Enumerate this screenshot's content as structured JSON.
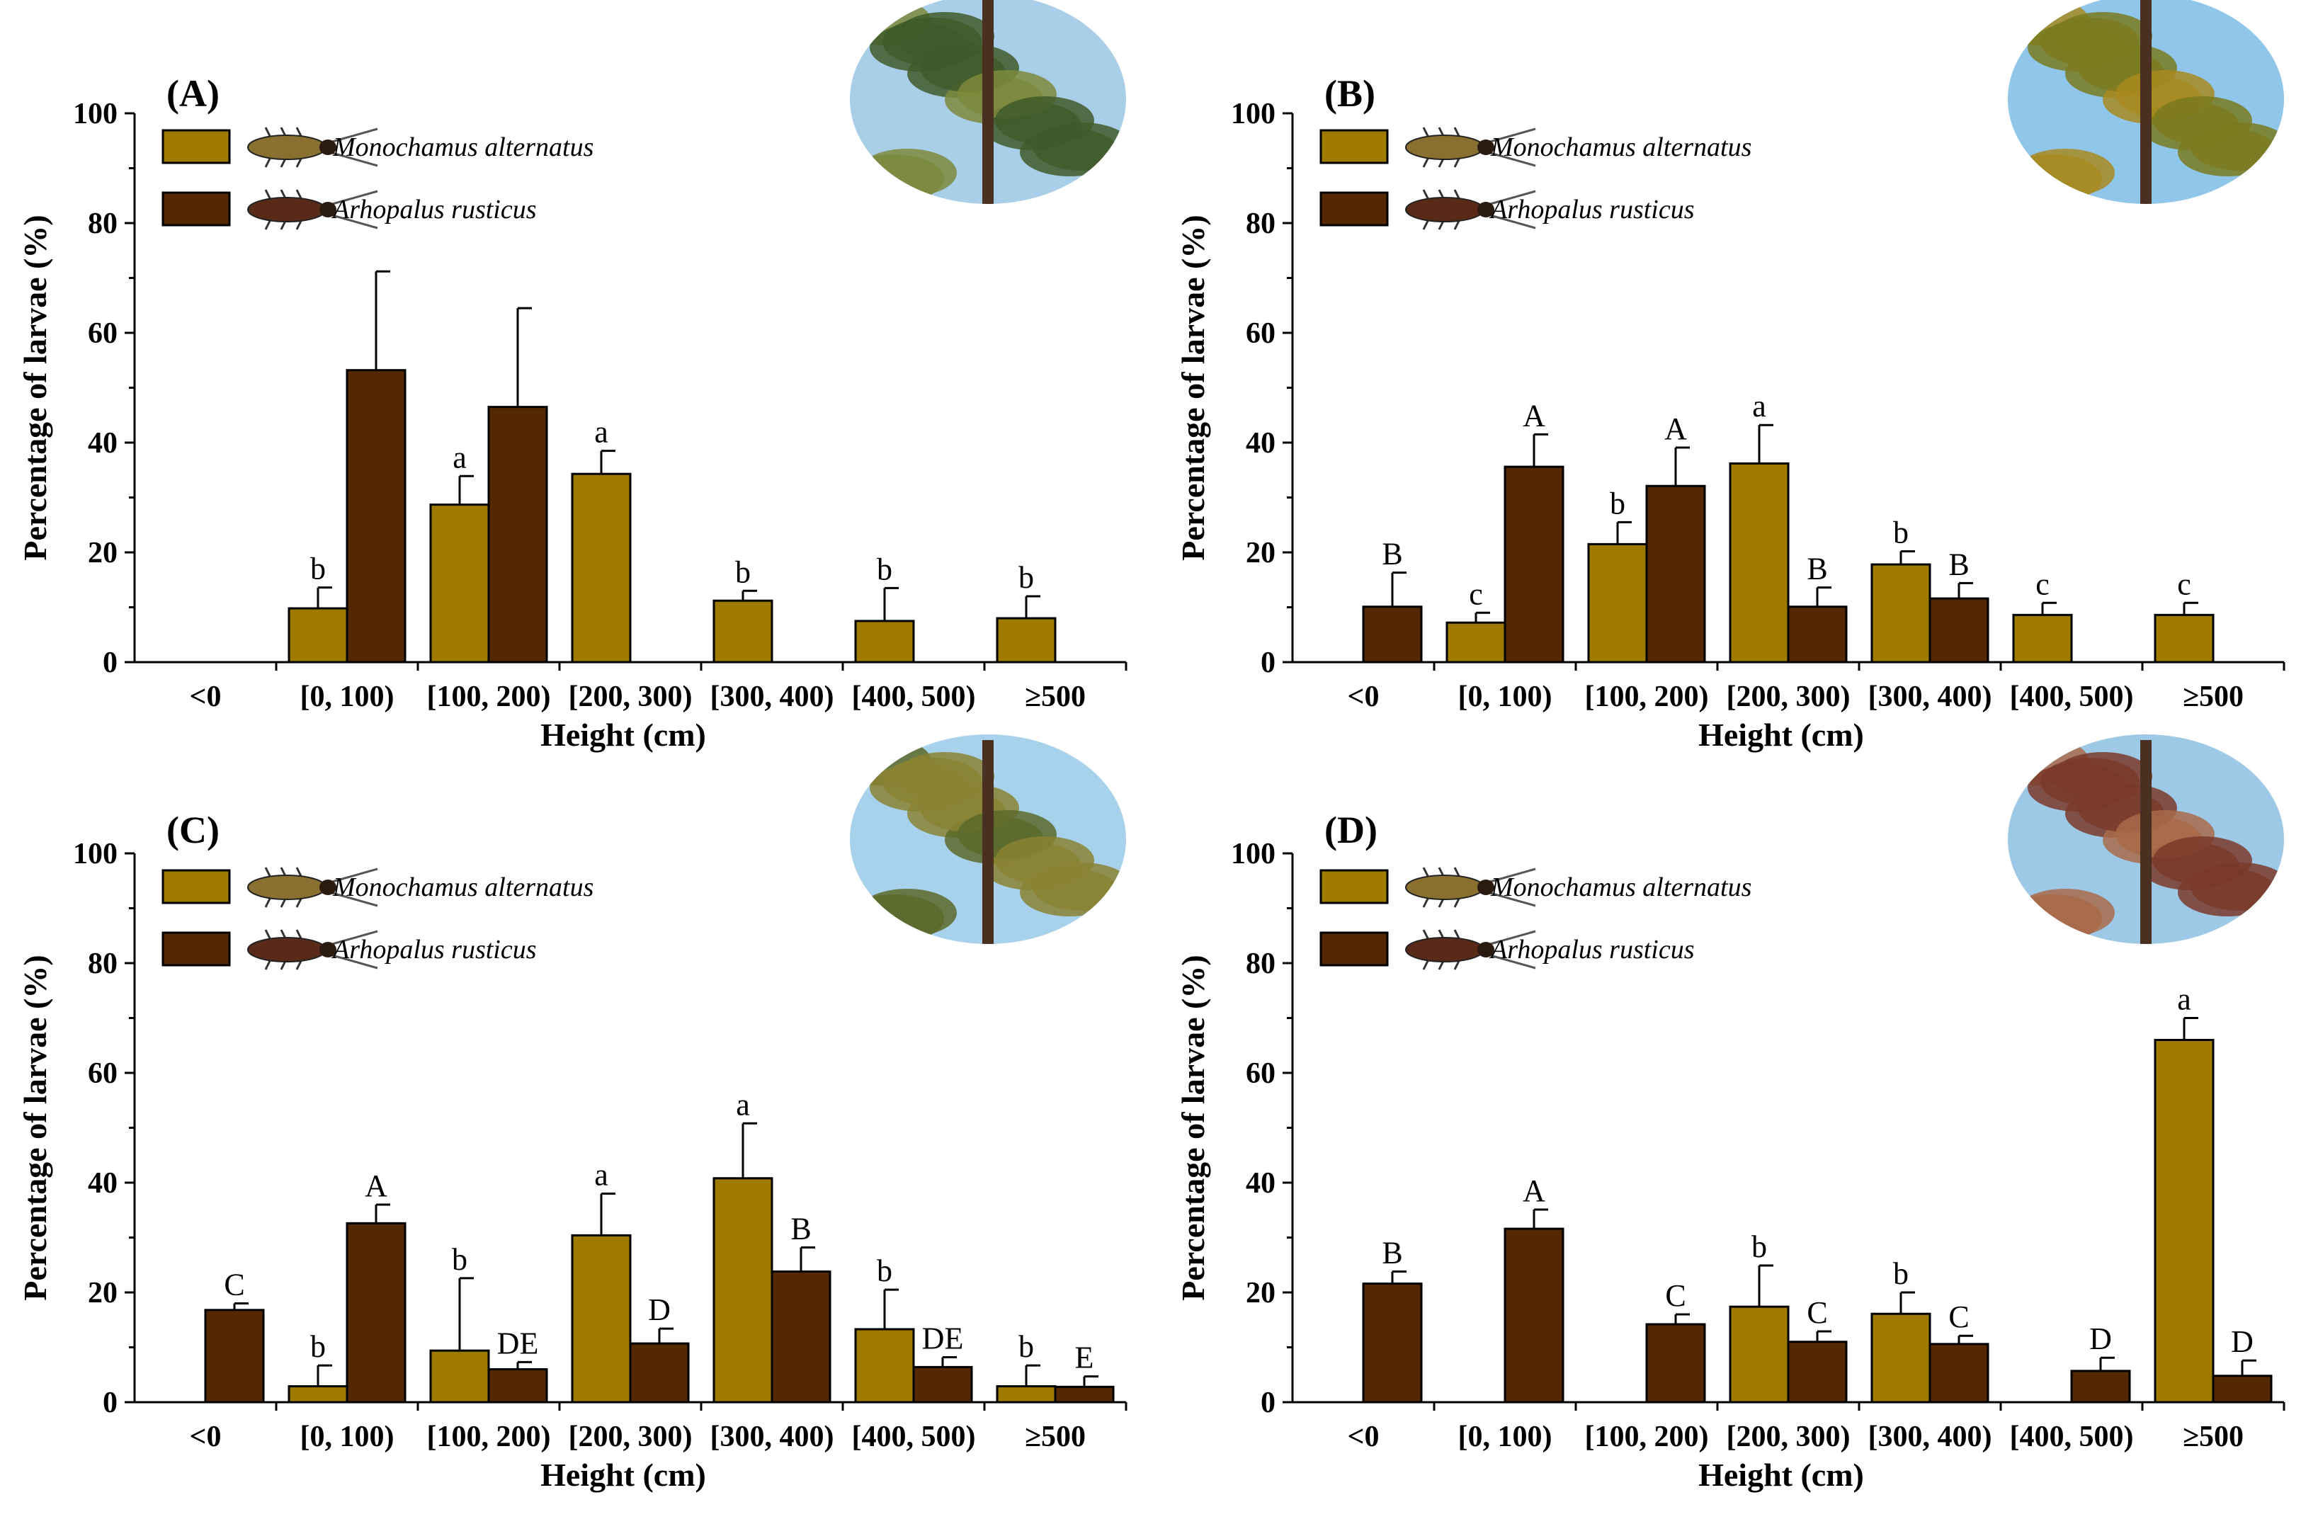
{
  "chart_data": {
    "type": "bar",
    "series_names": [
      "Monochamus alternatus",
      "Arhopalus rusticus"
    ],
    "colors": {
      "monochamus": "#9E7B00",
      "arhopalus": "#542800",
      "axis": "#000000"
    },
    "categories": [
      "<0",
      "[0, 100)",
      "[100, 200)",
      "[200, 300)",
      "[300, 400)",
      "[400, 500)",
      "≥500"
    ],
    "xlabel": "Height (cm)",
    "ylabel": "Percentage of larvae (%)",
    "ylim": [
      0,
      100
    ],
    "yticks": [
      "0",
      "20",
      "40",
      "60",
      "80",
      "100"
    ],
    "panels": [
      {
        "label": "(A)",
        "series": [
          {
            "name": "Monochamus alternatus",
            "values": [
              null,
              9.8,
              28.7,
              34.3,
              11.2,
              7.5,
              8.0
            ],
            "errors": [
              null,
              3.8,
              5.2,
              4.2,
              1.8,
              6.0,
              4.0
            ],
            "letters": [
              "",
              "b",
              "a",
              "a",
              "b",
              "b",
              "b"
            ]
          },
          {
            "name": "Arhopalus rusticus",
            "values": [
              null,
              53.2,
              46.5,
              null,
              null,
              null,
              null
            ],
            "errors": [
              null,
              18.0,
              18.0,
              null,
              null,
              null,
              null
            ],
            "letters": [
              "",
              "",
              "",
              "",
              "",
              "",
              ""
            ]
          }
        ]
      },
      {
        "label": "(B)",
        "series": [
          {
            "name": "Monochamus alternatus",
            "values": [
              null,
              7.2,
              21.5,
              36.2,
              17.8,
              8.6,
              8.6
            ],
            "errors": [
              null,
              1.8,
              4.0,
              7.0,
              2.4,
              2.2,
              2.2
            ],
            "letters": [
              "",
              "c",
              "b",
              "a",
              "b",
              "c",
              "c"
            ]
          },
          {
            "name": "Arhopalus rusticus",
            "values": [
              10.1,
              35.6,
              32.1,
              10.1,
              11.6,
              null,
              null
            ],
            "errors": [
              6.2,
              5.9,
              7.0,
              3.5,
              2.8,
              null,
              null
            ],
            "letters": [
              "B",
              "A",
              "A",
              "B",
              "B",
              "",
              ""
            ]
          }
        ]
      },
      {
        "label": "(C)",
        "series": [
          {
            "name": "Monochamus alternatus",
            "values": [
              null,
              2.9,
              9.4,
              30.4,
              40.8,
              13.3,
              2.9
            ],
            "errors": [
              null,
              3.8,
              13.2,
              7.6,
              10.0,
              7.2,
              3.8
            ],
            "letters": [
              "",
              "b",
              "b",
              "a",
              "a",
              "b",
              "b"
            ]
          },
          {
            "name": "Arhopalus rusticus",
            "values": [
              16.8,
              32.6,
              6.0,
              10.7,
              23.8,
              6.4,
              2.8
            ],
            "errors": [
              1.2,
              3.4,
              1.3,
              2.7,
              4.4,
              1.8,
              1.9
            ],
            "letters": [
              "C",
              "A",
              "DE",
              "D",
              "B",
              "DE",
              "E"
            ]
          }
        ]
      },
      {
        "label": "(D)",
        "series": [
          {
            "name": "Monochamus alternatus",
            "values": [
              null,
              null,
              null,
              17.4,
              16.1,
              null,
              66.0
            ],
            "errors": [
              null,
              null,
              null,
              7.5,
              3.9,
              null,
              4.0
            ],
            "letters": [
              "",
              "",
              "",
              "b",
              "b",
              "",
              "a"
            ]
          },
          {
            "name": "Arhopalus rusticus",
            "values": [
              21.6,
              31.6,
              14.2,
              11.0,
              10.6,
              5.7,
              4.8
            ],
            "errors": [
              2.2,
              3.5,
              1.8,
              1.9,
              1.5,
              2.4,
              2.8
            ],
            "letters": [
              "B",
              "A",
              "C",
              "C",
              "C",
              "D",
              "D"
            ]
          }
        ]
      }
    ]
  },
  "icons": {
    "beetle_a": "monochamus-beetle-icon",
    "beetle_b": "arhopalus-beetle-icon",
    "photo": "pine-tree-photo"
  }
}
